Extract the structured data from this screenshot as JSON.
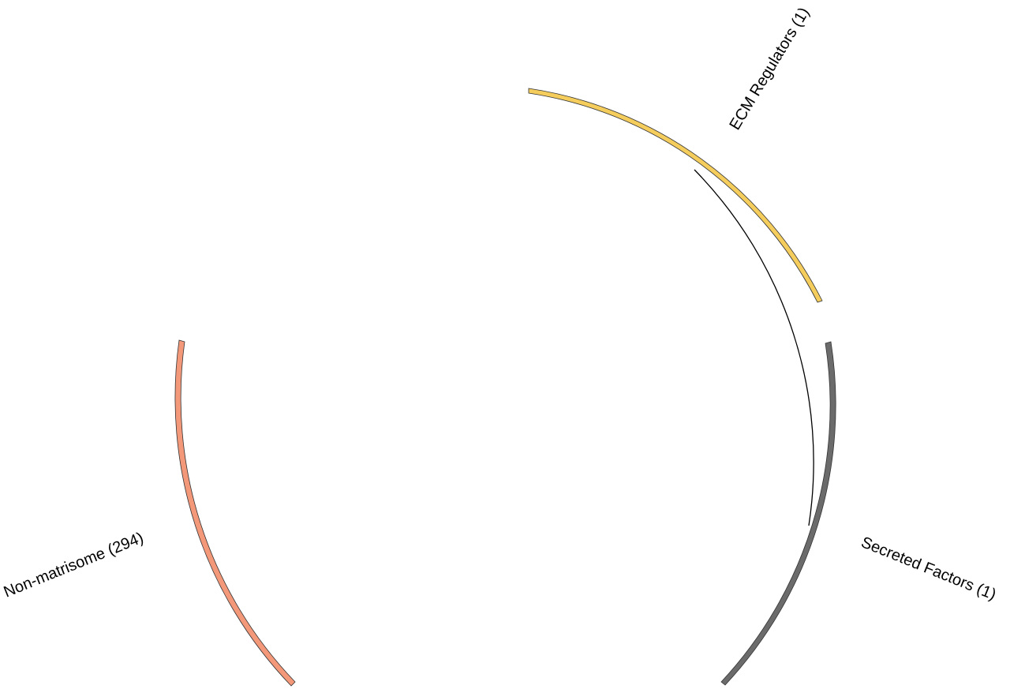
{
  "diagram": {
    "segments": [
      {
        "id": "ecm-regulators",
        "label": "ECM Regulators (1)",
        "color": "#f5cd5c"
      },
      {
        "id": "secreted-factors",
        "label": "Secreted Factors (1)",
        "color": "#6b6b6b"
      },
      {
        "id": "non-matrisome",
        "label": "Non-matrisome (294)",
        "color": "#f4987a"
      }
    ],
    "stroke_color": "#333333",
    "link_color": "#000000"
  }
}
